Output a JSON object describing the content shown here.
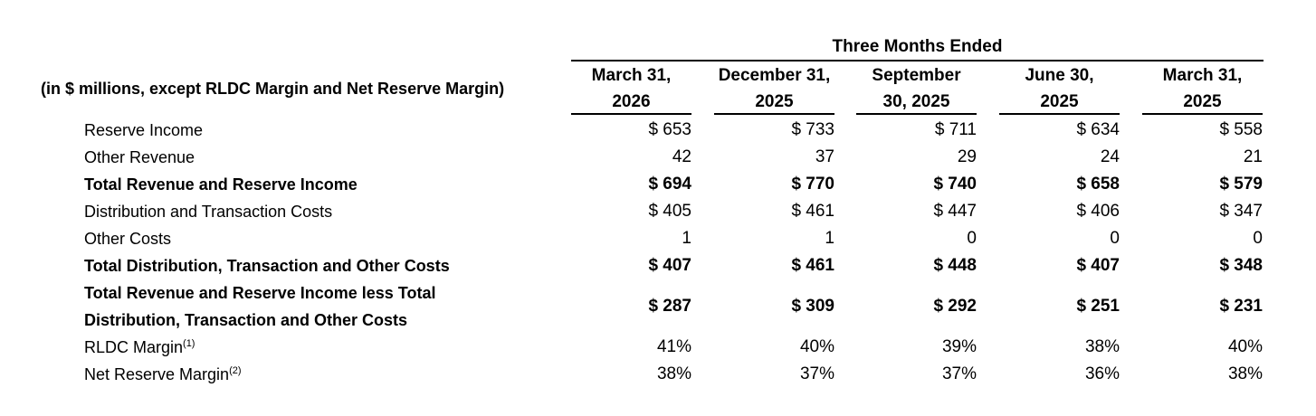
{
  "header": {
    "group_title": "Three Months Ended",
    "units_label": "(in $ millions, except RLDC Margin and Net Reserve Margin)",
    "columns": [
      {
        "line1": "March 31,",
        "line2": "2026"
      },
      {
        "line1": "December 31,",
        "line2": "2025"
      },
      {
        "line1": "September",
        "line2": "30, 2025"
      },
      {
        "line1": "June 30,",
        "line2": "2025"
      },
      {
        "line1": "March 31,",
        "line2": "2025"
      }
    ]
  },
  "rows": [
    {
      "label": "Reserve Income",
      "values": [
        "$ 653",
        "$ 733",
        "$ 711",
        "$ 634",
        "$ 558"
      ]
    },
    {
      "label": "Other Revenue",
      "values": [
        "42",
        "37",
        "29",
        "24",
        "21"
      ]
    },
    {
      "label": "Total Revenue and Reserve Income",
      "values": [
        "$ 694",
        "$ 770",
        "$ 740",
        "$ 658",
        "$ 579"
      ]
    },
    {
      "label": "Distribution and Transaction Costs",
      "values": [
        "$ 405",
        "$ 461",
        "$ 447",
        "$ 406",
        "$ 347"
      ]
    },
    {
      "label": "Other Costs",
      "values": [
        "1",
        "1",
        "0",
        "0",
        "0"
      ]
    },
    {
      "label": "Total Distribution, Transaction and Other Costs",
      "values": [
        "$ 407",
        "$ 461",
        "$ 448",
        "$ 407",
        "$ 348"
      ]
    },
    {
      "label_line1": "Total Revenue and Reserve Income less Total",
      "label_line2": "Distribution, Transaction and Other Costs",
      "values": [
        "$ 287",
        "$ 309",
        "$ 292",
        "$ 251",
        "$ 231"
      ]
    },
    {
      "label": "RLDC Margin",
      "footnote": "(1)",
      "values": [
        "41%",
        "40%",
        "39%",
        "38%",
        "40%"
      ]
    },
    {
      "label": "Net Reserve Margin",
      "footnote": "(2)",
      "values": [
        "38%",
        "37%",
        "37%",
        "36%",
        "38%"
      ]
    }
  ]
}
